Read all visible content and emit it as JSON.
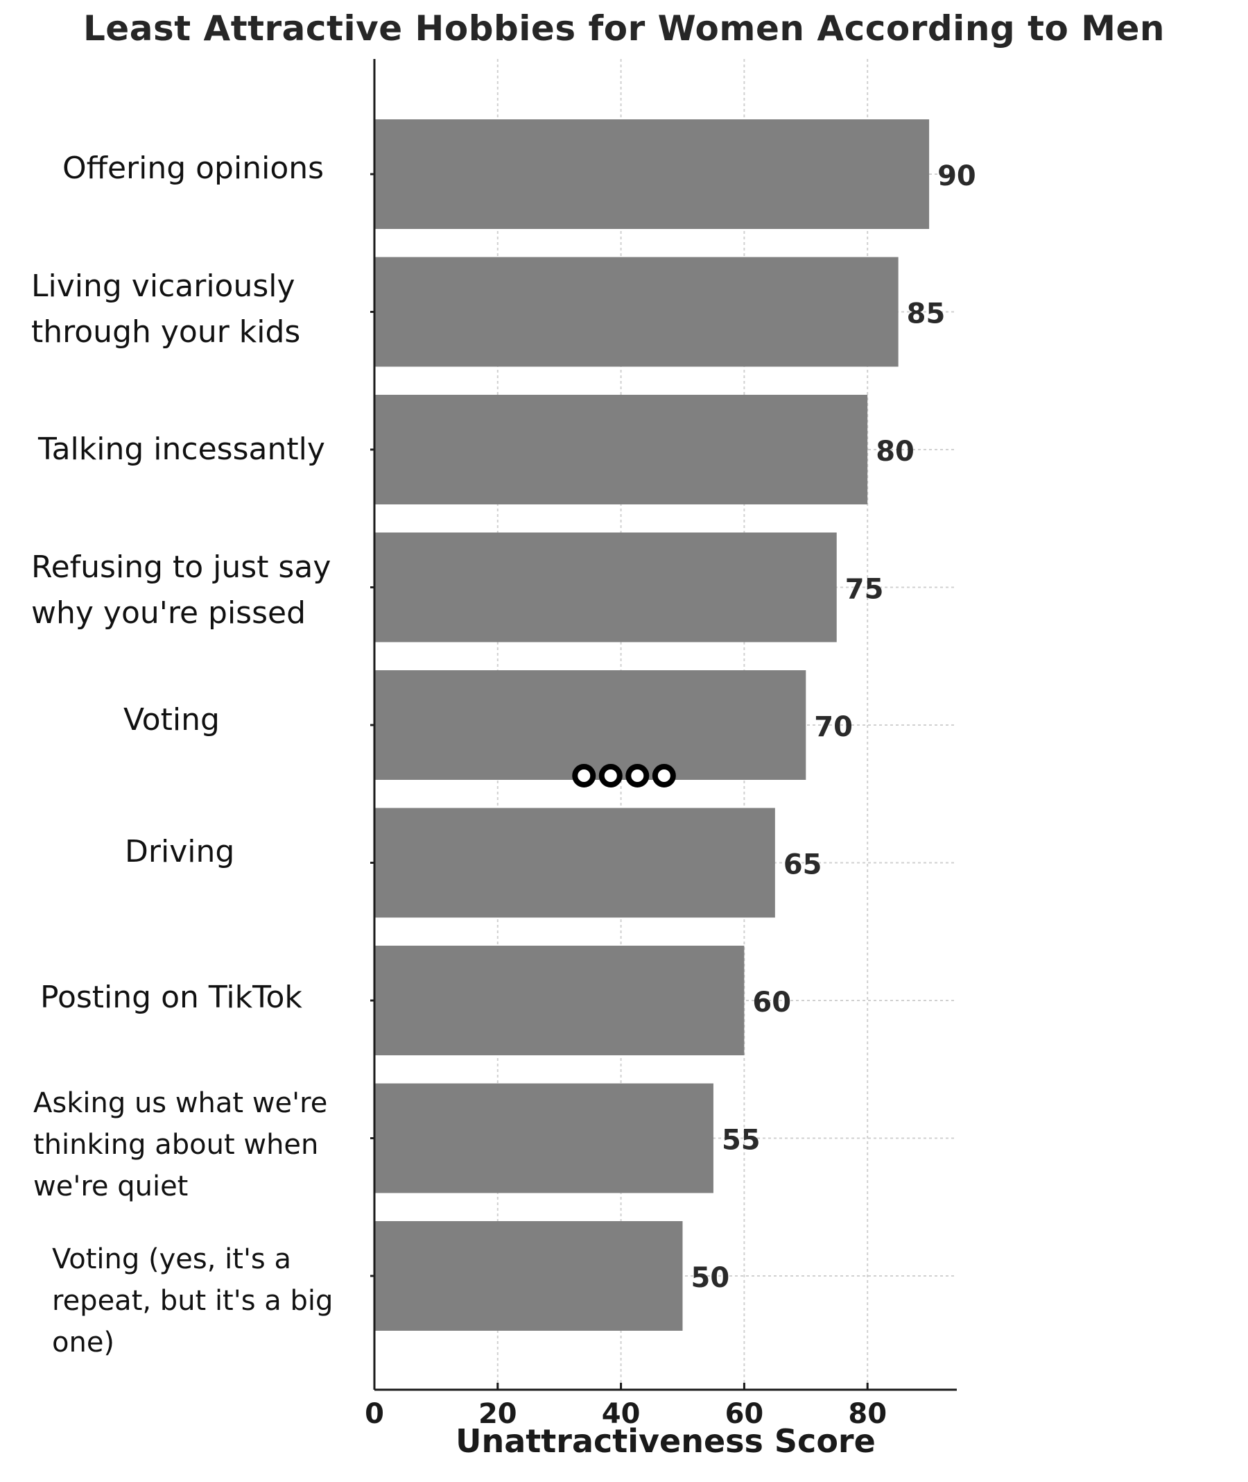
{
  "chart_data": {
    "type": "bar",
    "orientation": "horizontal",
    "title": "Least Attractive Hobbies for Women According to Men",
    "xlabel": "Unattractiveness Score",
    "ylabel": "",
    "xlim": [
      0,
      95
    ],
    "xticks": [
      0,
      20,
      40,
      60,
      80
    ],
    "grid": true,
    "bar_color": "#808080",
    "categories": [
      "Offering opinions",
      "Living vicariously\nthrough your kids",
      "Talking incessantly",
      "Refusing to just say\nwhy you're pissed",
      "Voting",
      "Driving",
      "Posting on TikTok",
      "Asking us what we're\nthinking about when\nwe're quiet",
      "Voting (yes, it's a\nrepeat, but it's a big\none)"
    ],
    "values": [
      90,
      85,
      80,
      75,
      70,
      65,
      60,
      55,
      50
    ],
    "data_labels": [
      "90",
      "85",
      "80",
      "75",
      "70",
      "65",
      "60",
      "55",
      "50"
    ],
    "annotations": [
      {
        "type": "ring-chain-icon",
        "count": 4,
        "near_category": "Voting",
        "x_range": [
          34,
          47
        ]
      }
    ]
  }
}
